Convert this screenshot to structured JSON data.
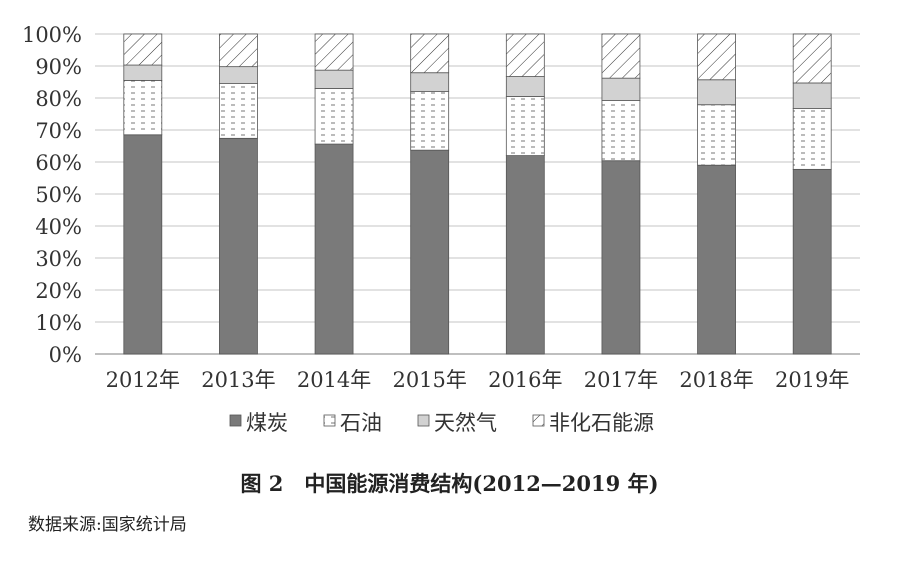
{
  "chart_data": {
    "type": "bar",
    "stacked": true,
    "categories": [
      "2012年",
      "2013年",
      "2014年",
      "2015年",
      "2016年",
      "2017年",
      "2018年",
      "2019年"
    ],
    "series": [
      {
        "name": "煤炭",
        "values": [
          68.5,
          67.4,
          65.6,
          63.7,
          62.0,
          60.4,
          59.0,
          57.7
        ],
        "fill": "#7a7a7a"
      },
      {
        "name": "石油",
        "values": [
          17.0,
          17.1,
          17.4,
          18.3,
          18.5,
          18.8,
          18.9,
          19.0
        ],
        "fill": "dashed-white"
      },
      {
        "name": "天然气",
        "values": [
          4.8,
          5.3,
          5.7,
          5.9,
          6.2,
          7.0,
          7.8,
          8.0
        ],
        "fill": "#d2d2d2"
      },
      {
        "name": "非化石能源",
        "values": [
          9.7,
          10.2,
          11.3,
          12.1,
          13.3,
          13.8,
          14.3,
          15.3
        ],
        "fill": "diagonal-hatch"
      }
    ],
    "y_ticks": [
      "0%",
      "10%",
      "20%",
      "30%",
      "40%",
      "50%",
      "60%",
      "70%",
      "80%",
      "90%",
      "100%"
    ],
    "ylim": [
      0,
      100
    ],
    "grid": true,
    "legend_position": "bottom",
    "title": "图 2　中国能源消费结构(2012—2019 年)",
    "source": "数据来源:国家统计局"
  }
}
